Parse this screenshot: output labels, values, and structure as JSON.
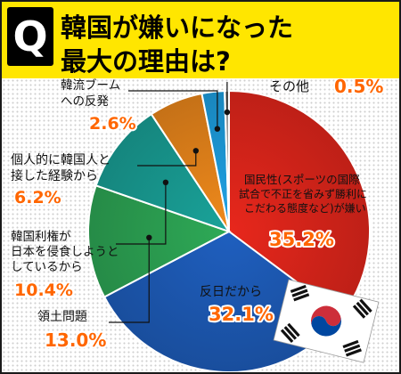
{
  "header": {
    "badge": "Q",
    "title_line1": "韓国が嫌いになった",
    "title_line2": "最大の理由は?"
  },
  "colors": {
    "header_bg": "#ffe600",
    "value_text": "#ff6600"
  },
  "chart_data": {
    "type": "pie",
    "start_angle_deg": 0,
    "direction": "clockwise",
    "slices": [
      {
        "label_lines": [
          "国民性(スポーツの国際",
          "試合で不正を省みず勝利に",
          "こだわる態度など)が嫌い"
        ],
        "value": 35.2,
        "value_label": "35.2%",
        "color": "#e8271c"
      },
      {
        "label_lines": [
          "反日だから"
        ],
        "value": 32.1,
        "value_label": "32.1%",
        "color": "#1f5fbf"
      },
      {
        "label_lines": [
          "領土問題"
        ],
        "value": 13.0,
        "value_label": "13.0%",
        "color": "#2eaa57"
      },
      {
        "label_lines": [
          "韓国利権が",
          "日本を侵食しようと",
          "しているから"
        ],
        "value": 10.4,
        "value_label": "10.4%",
        "color": "#1aa39a"
      },
      {
        "label_lines": [
          "個人的に韓国人と",
          "接した経験から"
        ],
        "value": 6.2,
        "value_label": "6.2%",
        "color": "#f08a1c"
      },
      {
        "label_lines": [
          "韓流ブームへの反発"
        ],
        "value": 2.6,
        "value_label": "2.6%",
        "color": "#1fa3e6"
      },
      {
        "label_lines": [
          "その他"
        ],
        "value": 0.5,
        "value_label": "0.5%",
        "color": "#b0b0b0"
      }
    ]
  }
}
